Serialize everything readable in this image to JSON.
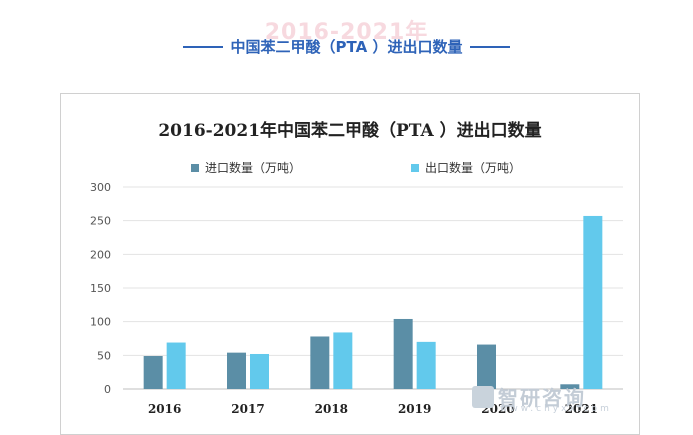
{
  "header": {
    "ghost_title": "2016-2021年",
    "title": "中国苯二甲酸（PTA ）进出口数量"
  },
  "chart_data": {
    "type": "bar",
    "title": "2016-2021年中国苯二甲酸（PTA ）进出口数量",
    "categories": [
      "2016",
      "2017",
      "2018",
      "2019",
      "2020",
      "2021"
    ],
    "series": [
      {
        "name": "进口数量（万吨）",
        "color": "#5b8ea6",
        "values": [
          49,
          54,
          78,
          104,
          66,
          7
        ]
      },
      {
        "name": "出口数量（万吨）",
        "color": "#62c9ec",
        "values": [
          69,
          52,
          84,
          70,
          0,
          257
        ]
      }
    ],
    "y_ticks": [
      "0",
      "50",
      "100",
      "150",
      "200",
      "250",
      "300"
    ],
    "ylim": [
      0,
      300
    ],
    "grid": true,
    "legend_position": "top"
  },
  "watermark": {
    "text": "智研咨询",
    "sub": "www.chyxx.com"
  }
}
